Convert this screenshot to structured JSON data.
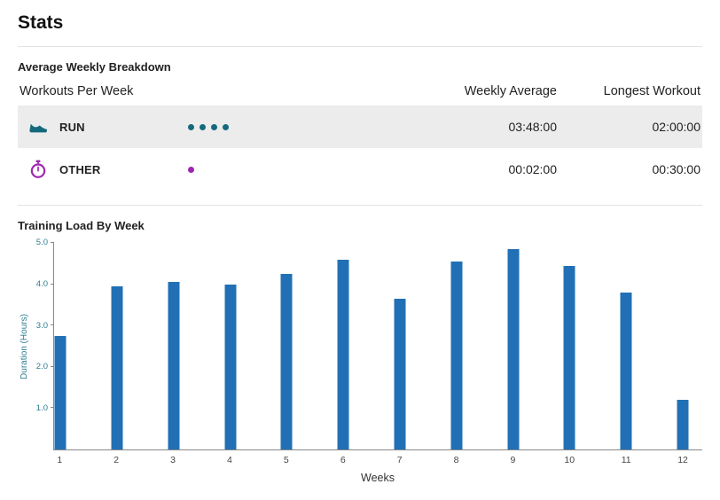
{
  "page": {
    "title": "Stats"
  },
  "breakdown": {
    "heading": "Average Weekly Breakdown",
    "columns": {
      "workouts_per_week": "Workouts Per Week",
      "weekly_average": "Weekly Average",
      "longest_workout": "Longest Workout"
    },
    "rows": [
      {
        "sport": "RUN",
        "icon": "running-shoe-icon",
        "color": "#15697c",
        "workouts_per_week": 4,
        "weekly_average": "03:48:00",
        "longest_workout": "02:00:00"
      },
      {
        "sport": "OTHER",
        "icon": "stopwatch-icon",
        "color": "#9d27af",
        "workouts_per_week": 1,
        "weekly_average": "00:02:00",
        "longest_workout": "00:30:00"
      }
    ]
  },
  "training_load": {
    "heading": "Training Load By Week"
  },
  "chart_data": {
    "type": "bar",
    "title": "Training Load By Week",
    "categories": [
      "1",
      "2",
      "3",
      "4",
      "5",
      "6",
      "7",
      "8",
      "9",
      "10",
      "11",
      "12"
    ],
    "values": [
      2.75,
      3.95,
      4.05,
      4.0,
      4.25,
      4.6,
      3.65,
      4.55,
      4.85,
      4.45,
      3.8,
      1.2
    ],
    "xlabel": "Weeks",
    "ylabel": "Duration (Hours)",
    "ylim": [
      0,
      5.0
    ],
    "yticks": [
      1.0,
      2.0,
      3.0,
      4.0,
      5.0
    ],
    "bar_color": "#2170b5",
    "ytick_color": "#2e7d91",
    "xtick_color": "#444444",
    "axis_color": "#888888",
    "grid": false,
    "legend": false
  }
}
